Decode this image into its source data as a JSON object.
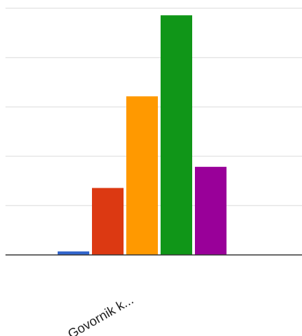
{
  "chart_data": {
    "type": "bar",
    "categories": [
      "Govornik k..."
    ],
    "series": [
      {
        "values": [
          1
        ],
        "color": "#3366cc"
      },
      {
        "values": [
          19
        ],
        "color": "#dc3912"
      },
      {
        "values": [
          45
        ],
        "color": "#ff9900"
      },
      {
        "values": [
          68
        ],
        "color": "#109618"
      },
      {
        "values": [
          25
        ],
        "color": "#990099"
      }
    ],
    "ylim": [
      0,
      70
    ],
    "grid": true,
    "title": "",
    "xlabel": "",
    "ylabel": ""
  }
}
